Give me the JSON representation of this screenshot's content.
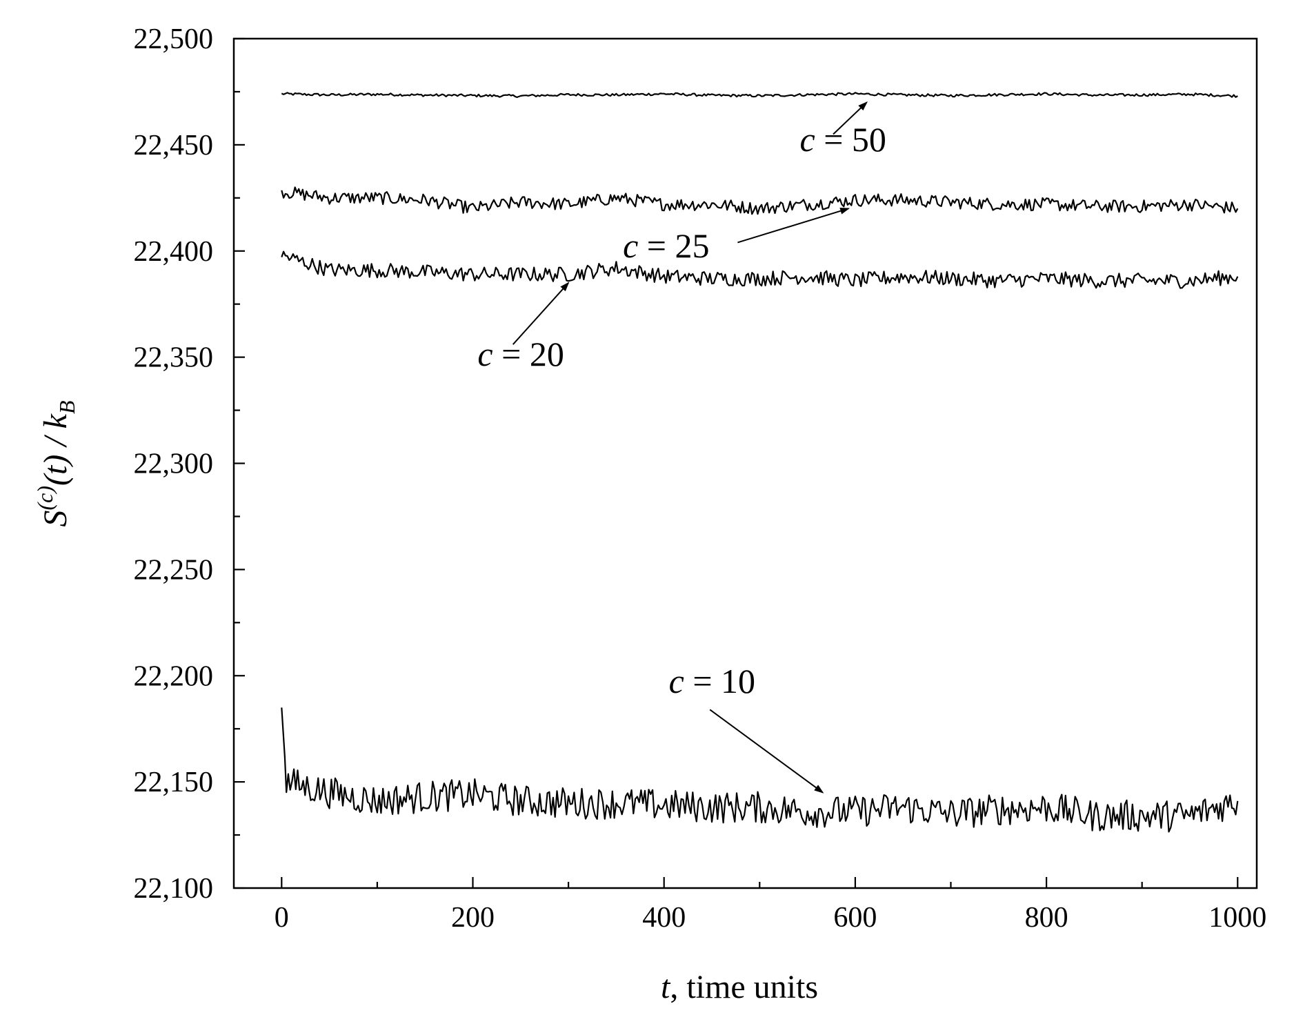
{
  "chart_data": {
    "type": "line",
    "xlabel": "t, time units",
    "xlabel_italic_part": "t",
    "xlabel_rest": ", time units",
    "ylabel": "S(c)(t) / kB",
    "ylabel_parts": {
      "S": "S",
      "sup": "(c)",
      "t": "(t) / ",
      "k": "k",
      "sub": "B"
    },
    "xlim": [
      -50,
      1020
    ],
    "ylim": [
      22100,
      22500
    ],
    "x_ticks": [
      0,
      200,
      400,
      600,
      800,
      1000
    ],
    "x_tick_labels": [
      "0",
      "200",
      "400",
      "600",
      "800",
      "1000"
    ],
    "y_ticks": [
      22100,
      22150,
      22200,
      22250,
      22300,
      22350,
      22400,
      22450,
      22500
    ],
    "y_tick_labels": [
      "22,100",
      "22,150",
      "22,200",
      "22,250",
      "22,300",
      "22,350",
      "22,400",
      "22,450",
      "22,500"
    ],
    "grid": false,
    "series": [
      {
        "key": "c50",
        "x": [
          0,
          50,
          100,
          150,
          200,
          250,
          300,
          350,
          400,
          450,
          500,
          550,
          600,
          650,
          700,
          750,
          800,
          850,
          900,
          950,
          1000
        ],
        "y": [
          22474,
          22473.5,
          22473.8,
          22473.4,
          22473.2,
          22473,
          22473.6,
          22473.5,
          22474,
          22473.3,
          22473.1,
          22473.6,
          22474,
          22473.5,
          22473.2,
          22473.6,
          22474,
          22473.4,
          22473.5,
          22473.8,
          22473
        ]
      },
      {
        "key": "c25",
        "x": [
          0,
          50,
          100,
          150,
          200,
          250,
          300,
          350,
          400,
          450,
          500,
          550,
          600,
          650,
          700,
          750,
          800,
          850,
          900,
          950,
          1000
        ],
        "y": [
          22428,
          22425,
          22425,
          22424,
          22420,
          22423,
          22422,
          22425,
          22422,
          22422,
          22420,
          22422,
          22424,
          22424,
          22423,
          22422,
          22422,
          22421,
          22421,
          22422,
          22420
        ]
      },
      {
        "key": "c20",
        "x": [
          0,
          50,
          100,
          150,
          200,
          250,
          300,
          350,
          400,
          450,
          500,
          550,
          600,
          650,
          700,
          750,
          800,
          850,
          900,
          950,
          1000
        ],
        "y": [
          22398,
          22391,
          22391,
          22390,
          22389,
          22389,
          22389,
          22392,
          22388,
          22387,
          22387,
          22388,
          22386,
          22388,
          22387,
          22386,
          22387,
          22386,
          22386,
          22386,
          22388
        ]
      },
      {
        "key": "c10",
        "x": [
          0,
          5,
          50,
          100,
          150,
          200,
          250,
          300,
          350,
          400,
          450,
          500,
          550,
          600,
          650,
          700,
          750,
          800,
          850,
          900,
          950,
          1000
        ],
        "y": [
          22185,
          22150,
          22145,
          22141,
          22143,
          22144,
          22141,
          22140,
          22140,
          22139,
          22138,
          22138,
          22136,
          22136,
          22138,
          22135,
          22137,
          22138,
          22134,
          22134,
          22134,
          22141
        ]
      }
    ],
    "annotations": [
      {
        "key": "c50",
        "c": "c",
        "rest": " = 50",
        "text_at": [
          542,
          22447
        ],
        "arrow_from": [
          577,
          22455
        ],
        "arrow_to": [
          612,
          22470
        ]
      },
      {
        "key": "c25",
        "c": "c",
        "rest": " = 25",
        "text_at": [
          357,
          22397
        ],
        "arrow_from": [
          477,
          22404
        ],
        "arrow_to": [
          593,
          22420
        ]
      },
      {
        "key": "c20",
        "c": "c",
        "rest": " = 20",
        "text_at": [
          205,
          22346
        ],
        "arrow_from": [
          242,
          22356
        ],
        "arrow_to": [
          300,
          22385
        ]
      },
      {
        "key": "c10",
        "c": "c",
        "rest": " = 10",
        "text_at": [
          405,
          22192
        ],
        "arrow_from": [
          448,
          22184
        ],
        "arrow_to": [
          566,
          22145
        ]
      }
    ]
  }
}
